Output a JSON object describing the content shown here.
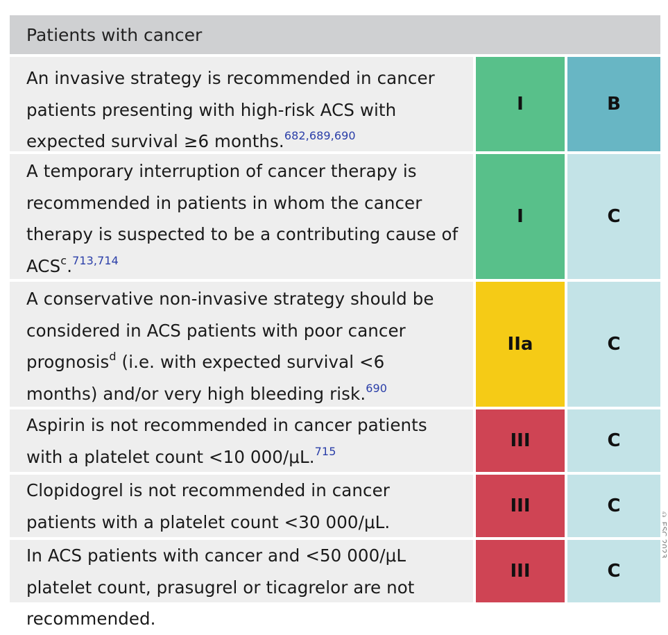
{
  "header": {
    "title": "Patients with cancer"
  },
  "colors": {
    "class_I": "#58c08a",
    "class_IIa": "#f5cb16",
    "class_III": "#cf4454",
    "level_B": "#68b6c4",
    "level_C": "#c3e3e7",
    "text_bg": "#eeeeee",
    "header_bg": "#cfd0d2",
    "reference": "#2a3ea8"
  },
  "rows": [
    {
      "text": "An invasive strategy is recommended in cancer patients presenting with high-risk ACS with expected survival ≥6 months.",
      "refs": "682,689,690",
      "class": "I",
      "level": "B"
    },
    {
      "text": "A temporary interruption of cancer therapy is recommended in patients in whom the cancer therapy is suspected to be a contributing cause of ACS",
      "note": "c",
      "text_end": ".",
      "refs": "713,714",
      "class": "I",
      "level": "C"
    },
    {
      "text_a": "A conservative non-invasive strategy should be considered in ACS patients with poor cancer prognosis",
      "note": "d",
      "text_b": " (i.e. with expected survival <6 months) and/or very high bleeding risk.",
      "refs": "690",
      "class": "IIa",
      "level": "C"
    },
    {
      "text": "Aspirin is not recommended in cancer patients with a platelet count <10 000/μL.",
      "refs": "715",
      "class": "III",
      "level": "C"
    },
    {
      "text": "Clopidogrel is not recommended in cancer patients with a platelet count <30 000/μL.",
      "class": "III",
      "level": "C"
    },
    {
      "text": "In ACS patients with cancer and <50 000/μL platelet count, prasugrel or ticagrelor are not recommended.",
      "class": "III",
      "level": "C"
    }
  ],
  "watermark": "© ESC 2023"
}
